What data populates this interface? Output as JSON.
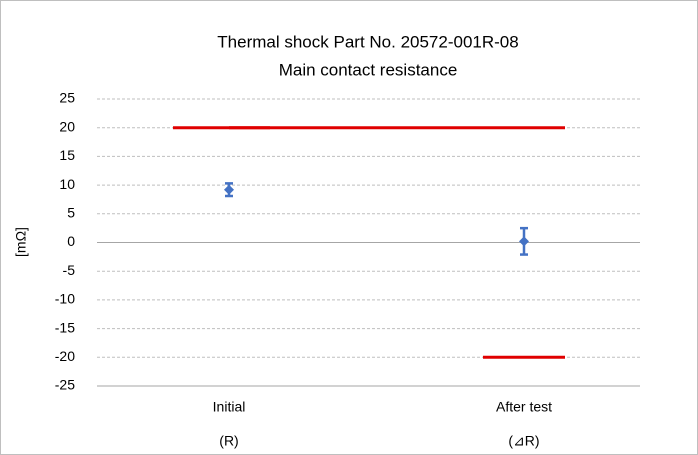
{
  "chart_data": {
    "type": "errorbar",
    "title": "Thermal shock Part No. 20572-001R-08",
    "subtitle": "Main contact resistance",
    "y_label": "[mΩ]",
    "categories": [
      "Initial",
      "After test"
    ],
    "category_sublabels": [
      "(R)",
      "(⊿R)"
    ],
    "series": [
      {
        "color": "#4472c4",
        "values": [
          9.2,
          0.2
        ],
        "errors": [
          1.1,
          2.3
        ]
      }
    ],
    "limits": [
      {
        "color": "#e00000",
        "values": [
          20,
          20
        ]
      },
      {
        "color": "#e00000",
        "values": [
          null,
          -20
        ]
      }
    ],
    "ylim": [
      -25,
      25
    ],
    "yticks": [
      -25,
      -20,
      -15,
      -10,
      -5,
      0,
      5,
      10,
      15,
      20,
      25
    ],
    "grid": true
  }
}
